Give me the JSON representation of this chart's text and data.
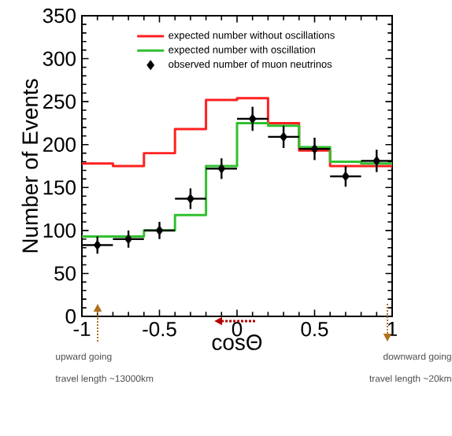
{
  "chart_data": {
    "type": "histogram",
    "xlabel": "cosΘ",
    "ylabel": "Number of Events",
    "bins": [
      -1,
      -0.8,
      -0.6,
      -0.4,
      -0.2,
      0,
      0.2,
      0.4,
      0.6,
      0.8,
      1
    ],
    "series": [
      {
        "name": "expected number without oscillations",
        "color": "#ff2020",
        "values": [
          178,
          175,
          190,
          218,
          252,
          254,
          225,
          193,
          175,
          175
        ]
      },
      {
        "name": "expected number with oscillation",
        "color": "#30c030",
        "values": [
          93,
          93,
          100,
          118,
          175,
          225,
          222,
          197,
          180,
          178
        ]
      },
      {
        "name": "observed number of muon neutrinos",
        "type": "scatter",
        "color": "#000000",
        "marker": "diamond",
        "x": [
          -0.9,
          -0.7,
          -0.5,
          -0.3,
          -0.1,
          0.1,
          0.3,
          0.5,
          0.7,
          0.9
        ],
        "values": [
          83,
          90,
          100,
          137,
          172,
          230,
          209,
          195,
          163,
          181
        ],
        "errors": [
          10,
          10,
          10,
          12,
          12,
          14,
          13,
          13,
          12,
          13
        ],
        "xerrors": [
          0.1,
          0.1,
          0.1,
          0.1,
          0.1,
          0.1,
          0.1,
          0.1,
          0.1,
          0.1
        ]
      }
    ],
    "xlim": [
      -1,
      1
    ],
    "ylim": [
      0,
      350
    ],
    "xticks": [
      -1,
      -0.5,
      0,
      0.5,
      1
    ],
    "yticks": [
      0,
      50,
      100,
      150,
      200,
      250,
      300,
      350
    ],
    "legend": "top",
    "annotations": [
      "upward going",
      "travel length ~13000km",
      "downward going",
      "travel length ~20km"
    ]
  }
}
